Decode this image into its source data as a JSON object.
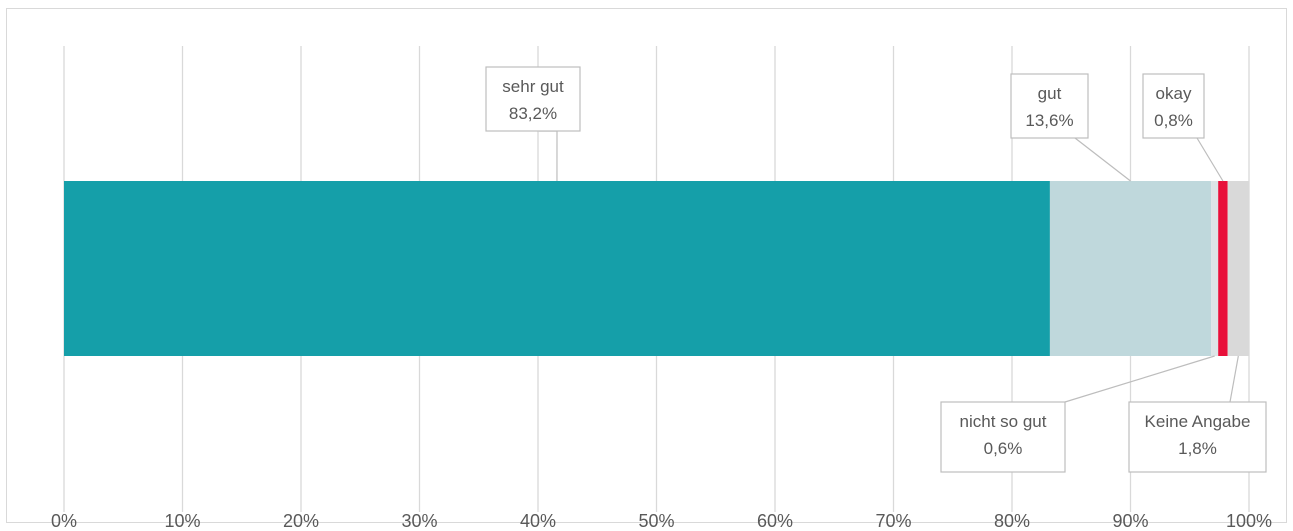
{
  "chart_data": {
    "type": "bar",
    "orientation": "horizontal",
    "stacked": true,
    "xlim": [
      0,
      100
    ],
    "x_ticks": [
      "0%",
      "10%",
      "20%",
      "30%",
      "40%",
      "50%",
      "60%",
      "70%",
      "80%",
      "90%",
      "100%"
    ],
    "grid": true,
    "series": [
      {
        "label": "sehr gut",
        "value": 83.2,
        "value_label": "83,2%",
        "color": "#159fa9",
        "callout": "above"
      },
      {
        "label": "gut",
        "value": 13.6,
        "value_label": "13,6%",
        "color": "#bfd8dc",
        "callout": "above"
      },
      {
        "label": "nicht so gut",
        "value": 0.6,
        "value_label": "0,6%",
        "color": "#dde5e7",
        "callout": "below"
      },
      {
        "label": "okay",
        "value": 0.8,
        "value_label": "0,8%",
        "color": "#e8103a",
        "callout": "above"
      },
      {
        "label": "Keine Angabe",
        "value": 1.8,
        "value_label": "1,8%",
        "color": "#d9d9d9",
        "callout": "below"
      }
    ]
  }
}
